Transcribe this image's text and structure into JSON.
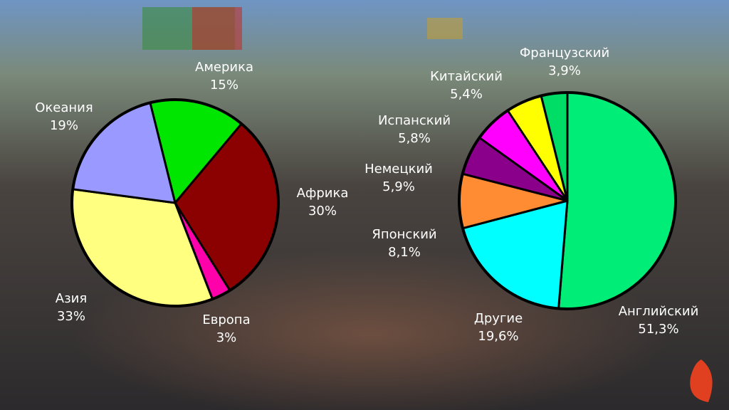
{
  "chart_data": [
    {
      "type": "pie",
      "categories": [
        "Америка",
        "Африка",
        "Европа",
        "Азия",
        "Океания"
      ],
      "values": [
        15,
        30,
        3,
        33,
        19
      ],
      "value_labels": [
        "15%",
        "30%",
        "3%",
        "33%",
        "19%"
      ],
      "colors": [
        "#00e600",
        "#8b0000",
        "#ff00aa",
        "#ffff80",
        "#9999ff"
      ]
    },
    {
      "type": "pie",
      "categories": [
        "Английский",
        "Другие",
        "Японский",
        "Немецкий",
        "Испанский",
        "Китайский",
        "Французский"
      ],
      "values": [
        51.3,
        19.6,
        8.1,
        5.9,
        5.8,
        5.4,
        3.9
      ],
      "value_labels": [
        "51,3%",
        "19,6%",
        "8,1%",
        "5,9%",
        "5,8%",
        "5,4%",
        "3,9%"
      ],
      "colors": [
        "#00ee77",
        "#00ffff",
        "#ff8c33",
        "#8b008b",
        "#ff00ff",
        "#ffff00",
        "#00dd66"
      ]
    }
  ]
}
